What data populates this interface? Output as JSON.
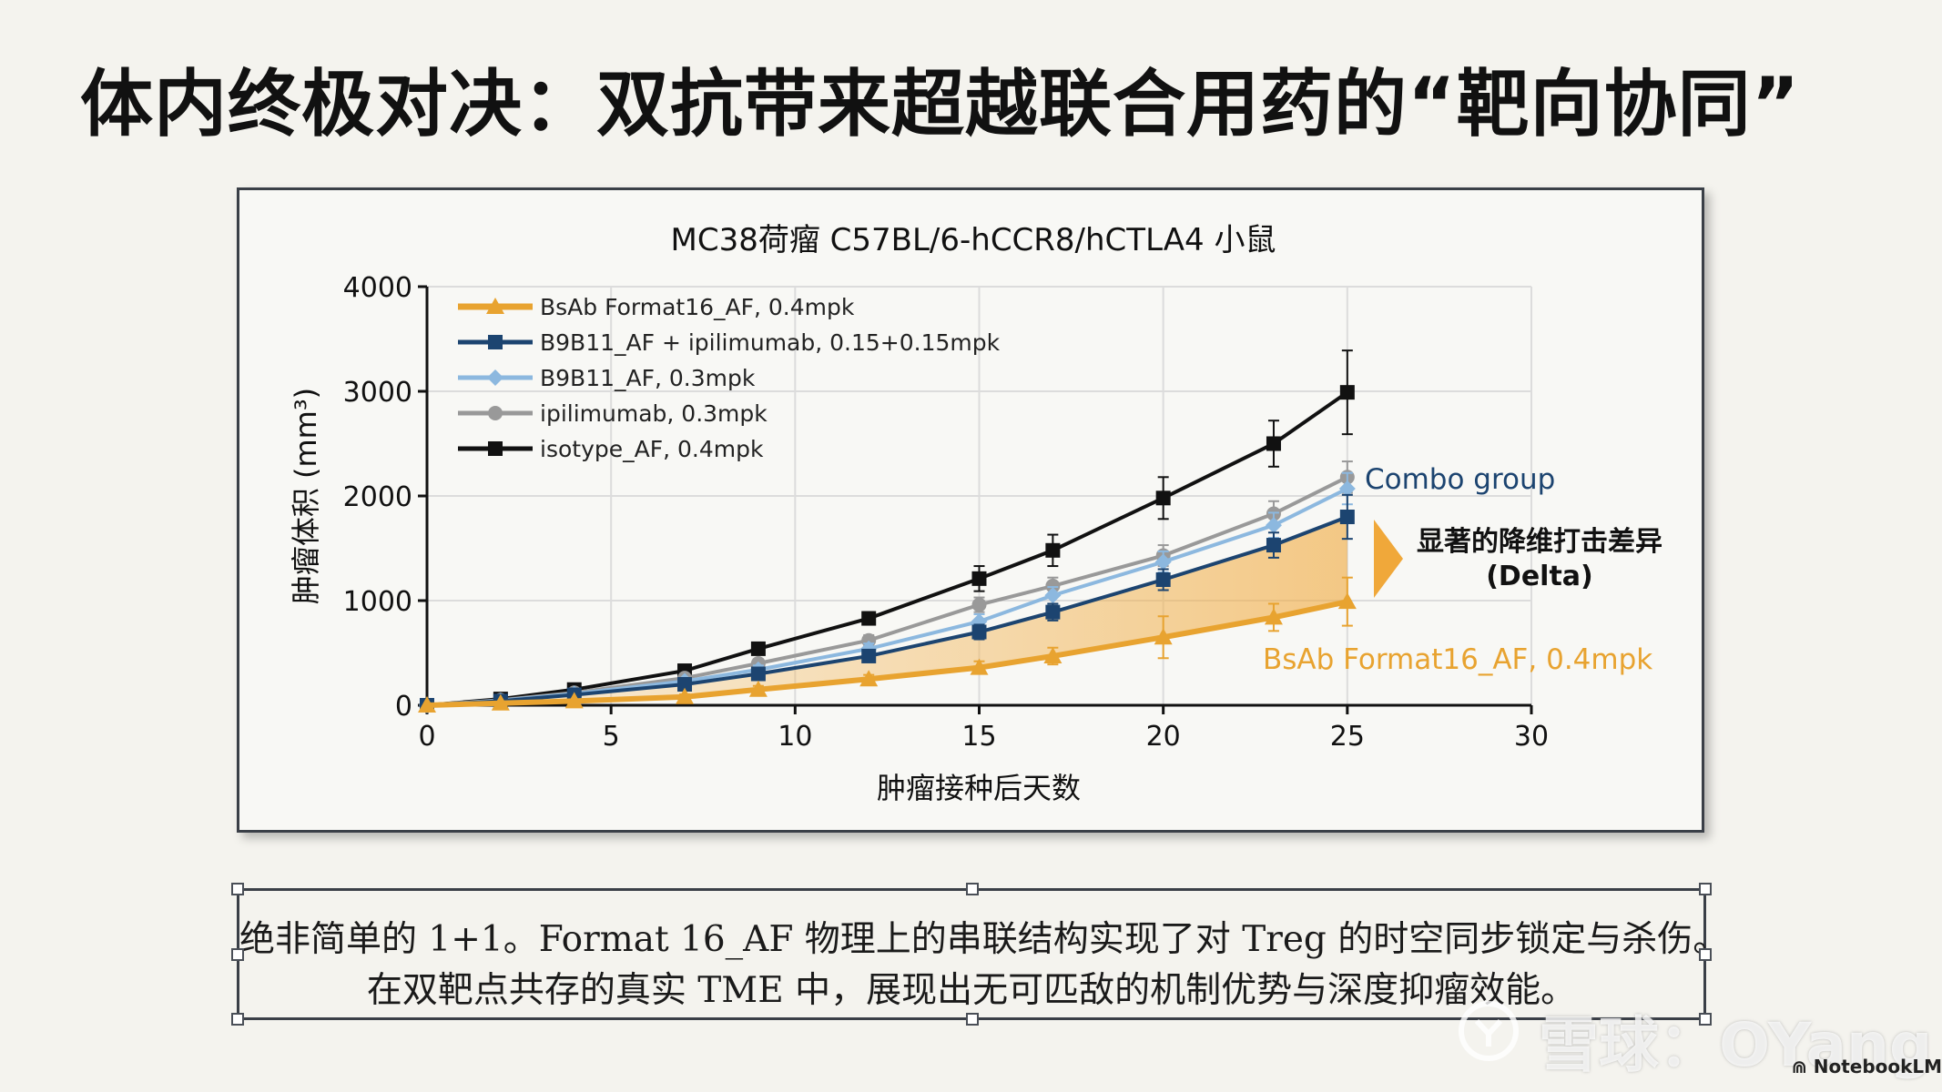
{
  "slide": {
    "title": "体内终极对决：双抗带来超越联合用药的“靶向协同”",
    "caption_line1": "绝非简单的 1+1。Format 16_AF 物理上的串联结构实现了对 Treg 的时空同步锁定与杀伤。",
    "caption_line2": "在双靶点共存的真实 TME 中，展现出无可匹敌的机制优势与深度抑瘤效能。",
    "watermark": "雪球：OYang",
    "brand": "NotebookLM"
  },
  "chart_data": {
    "type": "line",
    "title": "MC38荷瘤 C57BL/6-hCCR8/hCTLA4 小鼠",
    "xlabel": "肿瘤接种后天数",
    "ylabel": "肿瘤体积 (mm³)",
    "xlim": [
      0,
      30
    ],
    "ylim": [
      0,
      4000
    ],
    "xticks": [
      0,
      5,
      10,
      15,
      20,
      25,
      30
    ],
    "yticks": [
      0,
      1000,
      2000,
      3000,
      4000
    ],
    "grid": true,
    "legend_position": "top-left",
    "x": [
      0,
      2,
      4,
      7,
      9,
      12,
      15,
      17,
      20,
      23,
      25
    ],
    "series": [
      {
        "name": "BsAb Format16_AF, 0.4mpk",
        "color": "#e8a330",
        "marker": "triangle",
        "values": [
          0,
          20,
          40,
          80,
          150,
          250,
          360,
          470,
          650,
          840,
          990
        ],
        "errors": [
          0,
          10,
          15,
          25,
          35,
          40,
          60,
          80,
          200,
          130,
          230
        ]
      },
      {
        "name": "B9B11_AF + ipilimumab, 0.15+0.15mpk",
        "color": "#1c4470",
        "marker": "square",
        "values": [
          0,
          40,
          100,
          200,
          300,
          470,
          700,
          890,
          1200,
          1530,
          1800
        ],
        "errors": [
          0,
          10,
          20,
          25,
          40,
          50,
          70,
          80,
          100,
          120,
          210
        ]
      },
      {
        "name": "B9B11_AF, 0.3mpk",
        "color": "#8cb8df",
        "marker": "diamond",
        "values": [
          0,
          45,
          110,
          230,
          340,
          540,
          800,
          1050,
          1370,
          1720,
          2070
        ],
        "errors": [
          0,
          10,
          20,
          25,
          40,
          50,
          70,
          80,
          100,
          120,
          150
        ]
      },
      {
        "name": "ipilimumab, 0.3mpk",
        "color": "#999999",
        "marker": "circle",
        "values": [
          0,
          50,
          120,
          260,
          400,
          620,
          960,
          1140,
          1430,
          1830,
          2180
        ],
        "errors": [
          0,
          10,
          20,
          25,
          40,
          50,
          70,
          80,
          100,
          120,
          150
        ]
      },
      {
        "name": "isotype_AF, 0.4mpk",
        "color": "#111111",
        "marker": "square",
        "values": [
          0,
          60,
          150,
          330,
          540,
          830,
          1210,
          1480,
          1980,
          2500,
          2990
        ],
        "errors": [
          0,
          10,
          20,
          30,
          40,
          60,
          120,
          150,
          200,
          220,
          400
        ]
      }
    ],
    "annotations": {
      "combo_label": "Combo group",
      "delta_label_1": "显著的降维打击差异",
      "delta_label_2": "(Delta)",
      "bsab_label": "BsAb Format16_AF, 0.4mpk"
    }
  }
}
